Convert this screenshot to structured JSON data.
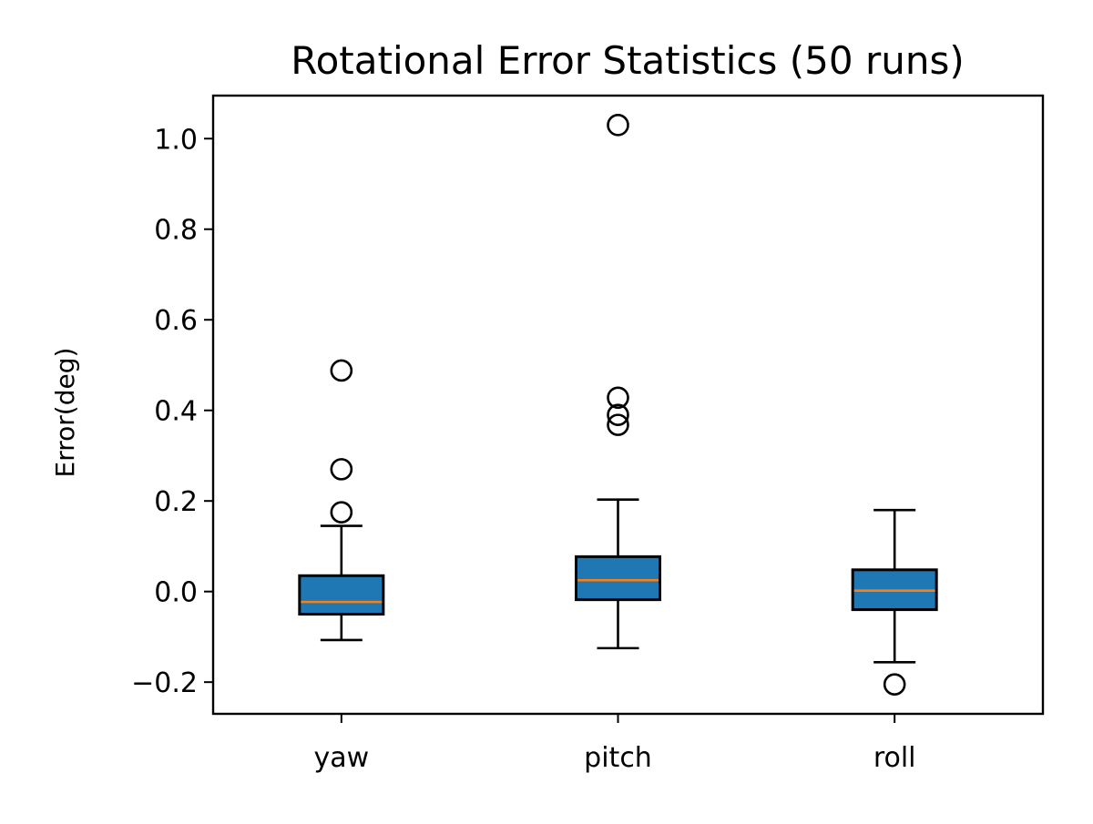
{
  "chart_data": {
    "type": "box",
    "title": "Rotational Error Statistics (50 runs)",
    "xlabel": "",
    "ylabel": "Error(deg)",
    "ylim": [
      -0.27,
      1.095
    ],
    "yticks": [
      -0.2,
      0.0,
      0.2,
      0.4,
      0.6,
      0.8,
      1.0
    ],
    "ytick_labels": [
      "−0.2",
      "0.0",
      "0.2",
      "0.4",
      "0.6",
      "0.8",
      "1.0"
    ],
    "categories": [
      "yaw",
      "pitch",
      "roll"
    ],
    "boxes": [
      {
        "category": "yaw",
        "whisker_low": -0.107,
        "q1": -0.05,
        "median": -0.023,
        "q3": 0.035,
        "whisker_high": 0.145,
        "outliers": [
          0.175,
          0.27,
          0.488
        ]
      },
      {
        "category": "pitch",
        "whisker_low": -0.125,
        "q1": -0.018,
        "median": 0.025,
        "q3": 0.077,
        "whisker_high": 0.203,
        "outliers": [
          0.368,
          0.39,
          0.428,
          1.03
        ]
      },
      {
        "category": "roll",
        "whisker_low": -0.156,
        "q1": -0.04,
        "median": 0.002,
        "q3": 0.048,
        "whisker_high": 0.18,
        "outliers": [
          -0.205
        ]
      }
    ],
    "box_fill_color": "#1f77b4",
    "median_color": "#ff7f0e",
    "outlier_marker": "open-circle",
    "grid": false
  }
}
